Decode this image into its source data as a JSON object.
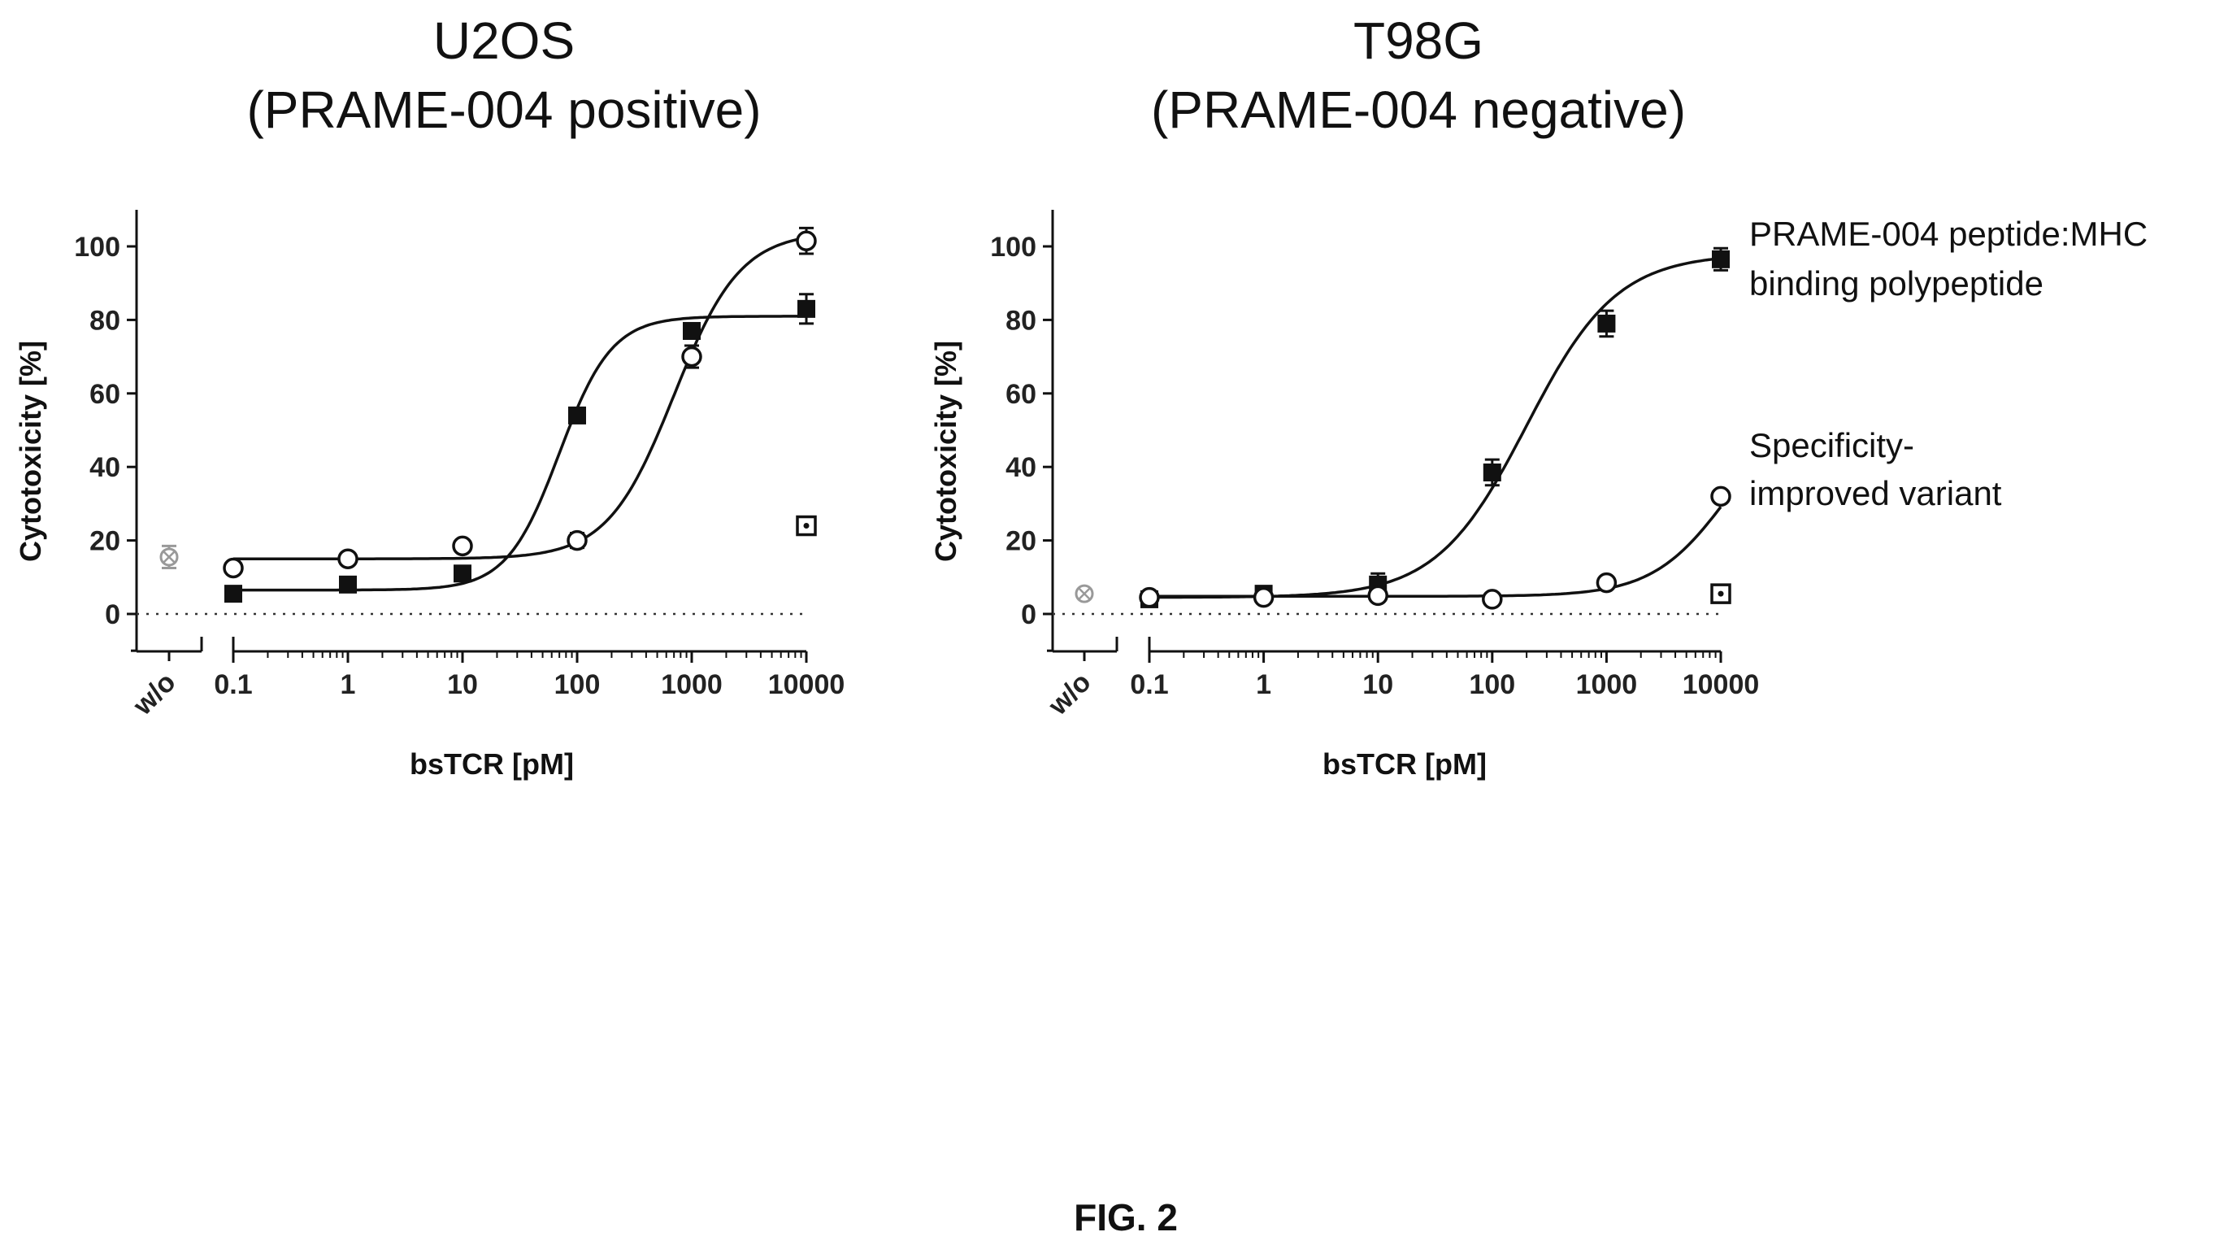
{
  "figure_label": "FIG. 2",
  "legend": {
    "series_1": [
      "PRAME-004 peptide:MHC",
      "binding polypeptide"
    ],
    "series_2": [
      "Specificity-",
      "improved variant"
    ]
  },
  "chart_data": [
    {
      "type": "scatter",
      "title": [
        "U2OS",
        "(PRAME-004 positive)"
      ],
      "xlabel": "bsTCR [pM]",
      "ylabel": "Cytotoxicity [%]",
      "xscale": "log",
      "xlim": [
        0.1,
        10000
      ],
      "ylim": [
        -10,
        110
      ],
      "x_ticks": [
        "0.1",
        "1",
        "10",
        "100",
        "1000",
        "10000"
      ],
      "x_break_tick": "w/o",
      "y_ticks": [
        0,
        20,
        40,
        60,
        80,
        100
      ],
      "zero_line": "dotted",
      "series": [
        {
          "name": "PRAME-004 peptide:MHC binding polypeptide",
          "marker": "filled-square",
          "x": [
            0.1,
            1,
            10,
            100,
            1000,
            10000
          ],
          "y": [
            5.5,
            8,
            11,
            54,
            77,
            83
          ],
          "err": [
            0.8,
            0.8,
            1,
            2,
            1.5,
            4
          ],
          "fit": {
            "bottom": 6.5,
            "top": 81,
            "ec50": 70,
            "hill": 1.9
          }
        },
        {
          "name": "Specificity-improved variant",
          "marker": "open-circle",
          "x": [
            0.1,
            1,
            10,
            100,
            1000,
            10000
          ],
          "y": [
            12.5,
            15,
            18.5,
            20,
            70,
            101.5
          ],
          "err": [
            0.8,
            0.8,
            1,
            2,
            3,
            3.5
          ],
          "fit": {
            "bottom": 15,
            "top": 104,
            "ec50": 700,
            "hill": 1.5
          }
        }
      ],
      "controls": [
        {
          "position": "w/o",
          "marker": "gray-crossed-circle",
          "y": 15.5,
          "err": 3
        },
        {
          "x": 10000,
          "marker": "dotted-square",
          "y": 24,
          "err": 2
        }
      ]
    },
    {
      "type": "scatter",
      "title": [
        "T98G",
        "(PRAME-004 negative)"
      ],
      "xlabel": "bsTCR [pM]",
      "ylabel": "Cytotoxicity [%]",
      "xscale": "log",
      "xlim": [
        0.1,
        10000
      ],
      "ylim": [
        -10,
        110
      ],
      "x_ticks": [
        "0.1",
        "1",
        "10",
        "100",
        "1000",
        "10000"
      ],
      "x_break_tick": "w/o",
      "y_ticks": [
        0,
        20,
        40,
        60,
        80,
        100
      ],
      "zero_line": "dotted",
      "series": [
        {
          "name": "PRAME-004 peptide:MHC binding polypeptide",
          "marker": "filled-square",
          "x": [
            0.1,
            1,
            10,
            100,
            1000,
            10000
          ],
          "y": [
            4,
            5.5,
            8,
            38.5,
            79,
            96.5
          ],
          "err": [
            0.8,
            1.5,
            3,
            3.5,
            3.5,
            3
          ],
          "fit": {
            "bottom": 4.5,
            "top": 98,
            "ec50": 200,
            "hill": 1.1
          }
        },
        {
          "name": "Specificity-improved variant",
          "marker": "open-circle",
          "x": [
            0.1,
            1,
            10,
            100,
            1000,
            10000
          ],
          "y": [
            4.5,
            4.5,
            5,
            4,
            8.5,
            32
          ],
          "err": [
            0.5,
            0.5,
            0.5,
            0.5,
            1,
            1
          ],
          "fit": {
            "bottom": 4.8,
            "top": 60,
            "ec50": 12000,
            "hill": 1.3
          }
        }
      ],
      "controls": [
        {
          "position": "w/o",
          "marker": "gray-crossed-circle",
          "y": 5.5,
          "err": 1
        },
        {
          "x": 10000,
          "marker": "dotted-square",
          "y": 5.5,
          "err": 1
        }
      ]
    }
  ]
}
